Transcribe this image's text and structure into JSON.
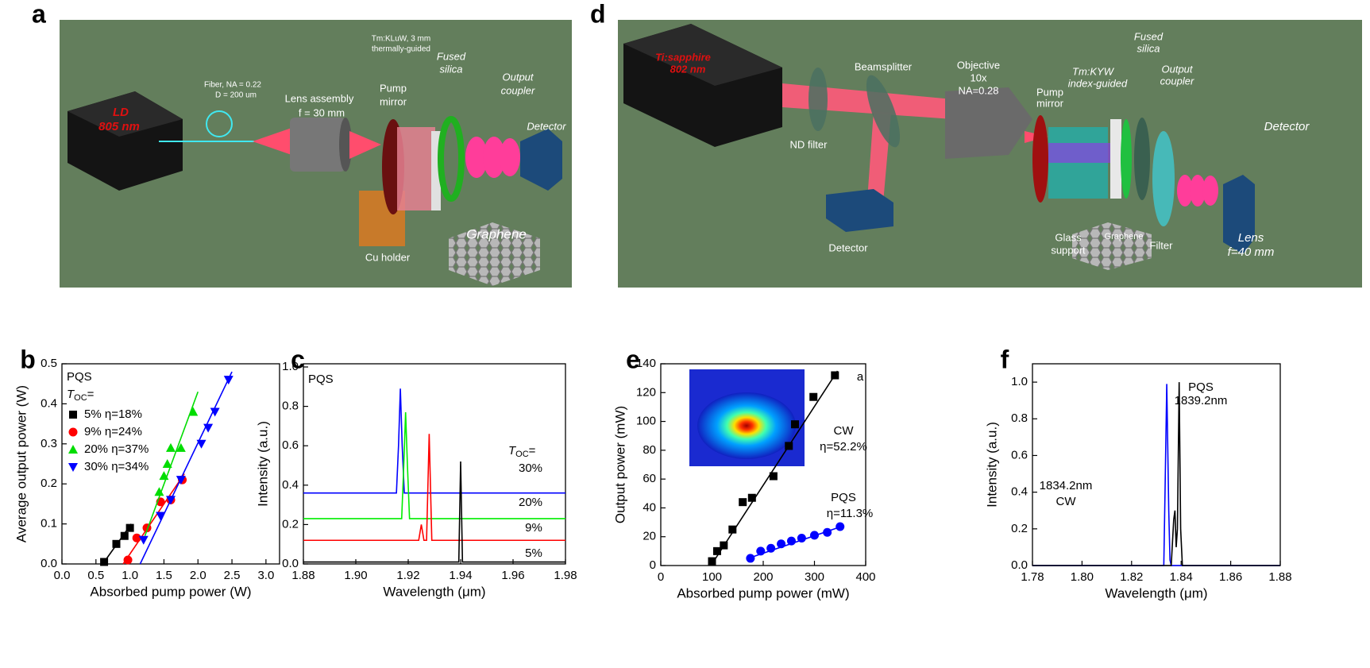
{
  "panel_a": {
    "letter": "a",
    "labels": [
      "Fiber, NA = 0.22",
      "D = 200 um",
      "LD",
      "805 nm",
      "Lens assembly",
      "f = 30 mm",
      "Pump",
      "mirror",
      "Tm:KLuW, 3 mm",
      "thermally-guided",
      "Fused",
      "silica",
      "Output",
      "coupler",
      "Detector",
      "Cu holder",
      "Graphene"
    ]
  },
  "panel_d": {
    "letter": "d",
    "labels": [
      "Ti:sapphire",
      "802 nm",
      "Beamsplitter",
      "ND filter",
      "Detector",
      "Objective",
      "10x",
      "NA=0.28",
      "Pump",
      "mirror",
      "Tm:KYW",
      "index-guided",
      "Fused",
      "silica",
      "Output",
      "coupler",
      "Detector",
      "Glass",
      "support",
      "Graphene",
      "Filter",
      "Lens",
      "f=40 mm"
    ]
  },
  "chart_data": [
    {
      "type": "scatter",
      "panel": "b",
      "xlabel": "Absorbed pump power (W)",
      "ylabel": "Average output power (W)",
      "xlim": [
        0,
        3.2
      ],
      "ylim": [
        0,
        0.5
      ],
      "xticks": [
        {
          "value": 0,
          "label": "0.0"
        },
        0.5,
        {
          "value": 1,
          "label": "1.0"
        },
        1.5,
        {
          "value": 2,
          "label": "2.0"
        },
        2.5,
        {
          "value": 3,
          "label": "3.0"
        }
      ],
      "yticks": [
        {
          "value": 0,
          "label": "0.0"
        },
        0.1,
        0.2,
        0.3,
        0.4,
        0.5
      ],
      "legend": "upper left",
      "legend_title": "PQS",
      "legend_param": {
        "main": "T",
        "sub": "OC",
        "suffix": "="
      },
      "series": [
        {
          "name": "5% η=18%",
          "color": "#000000",
          "marker": "square",
          "x": [
            0.62,
            0.8,
            0.92,
            1.0
          ],
          "values": [
            0.005,
            0.05,
            0.07,
            0.09
          ],
          "fit": {
            "x": [
              0.6,
              1.02
            ],
            "values": [
              0,
              0.1
            ]
          }
        },
        {
          "name": "9% η=24%",
          "color": "#ff0000",
          "marker": "circle",
          "x": [
            0.97,
            1.1,
            1.25,
            1.45,
            1.6,
            1.77
          ],
          "values": [
            0.01,
            0.065,
            0.09,
            0.155,
            0.16,
            0.21
          ],
          "fit": {
            "x": [
              0.9,
              1.8
            ],
            "values": [
              0,
              0.225
            ]
          }
        },
        {
          "name": "20% η=37%",
          "color": "#00dd00",
          "marker": "triangle",
          "x": [
            1.43,
            1.5,
            1.55,
            1.6,
            1.75,
            1.93
          ],
          "values": [
            0.18,
            0.22,
            0.25,
            0.29,
            0.29,
            0.38
          ],
          "fit": {
            "x": [
              1.22,
              2.0
            ],
            "values": [
              0.07,
              0.43
            ]
          }
        },
        {
          "name": "30% η=34%",
          "color": "#0000ff",
          "marker": "triangle-down",
          "x": [
            1.2,
            1.45,
            1.6,
            1.75,
            2.05,
            2.15,
            2.25,
            2.45
          ],
          "values": [
            0.06,
            0.12,
            0.16,
            0.21,
            0.3,
            0.34,
            0.38,
            0.46
          ],
          "fit": {
            "x": [
              1.15,
              2.5
            ],
            "values": [
              0,
              0.48
            ]
          }
        }
      ]
    },
    {
      "type": "line",
      "panel": "c",
      "xlabel": "Wavelength (μm)",
      "ylabel": "Intensity (a.u.)",
      "xlim": [
        1.88,
        1.98
      ],
      "ylim": [
        0,
        1
      ],
      "xticks": [
        1.88,
        {
          "value": 1.9,
          "label": "1.90"
        },
        1.92,
        1.94,
        1.96,
        1.98
      ],
      "yticks": [
        {
          "value": 0,
          "label": "0.0"
        },
        0.2,
        0.4,
        0.6,
        0.8,
        {
          "value": 1,
          "label": "1.0"
        }
      ],
      "legend": "none",
      "title_note": "PQS",
      "legend_param": {
        "main": "T",
        "sub": "OC",
        "suffix": "="
      },
      "series": [
        {
          "name": "30%",
          "color": "#0000ff",
          "x": [
            1.88,
            1.9155,
            1.9163,
            1.917,
            1.9177,
            1.9185,
            1.98
          ],
          "values": [
            0.36,
            0.36,
            0.6,
            0.89,
            0.6,
            0.36,
            0.36
          ]
        },
        {
          "name": "20%",
          "color": "#00ee00",
          "x": [
            1.88,
            1.9175,
            1.9183,
            1.919,
            1.9197,
            1.9205,
            1.98
          ],
          "values": [
            0.23,
            0.23,
            0.5,
            0.77,
            0.5,
            0.23,
            0.23
          ]
        },
        {
          "name": "9%",
          "color": "#ff0000",
          "x": [
            1.88,
            1.924,
            1.925,
            1.926,
            1.927,
            1.928,
            1.929,
            1.98
          ],
          "values": [
            0.12,
            0.12,
            0.2,
            0.12,
            0.12,
            0.66,
            0.12,
            0.12
          ]
        },
        {
          "name": "5%",
          "color": "#000000",
          "x": [
            1.88,
            1.9393,
            1.94,
            1.9407,
            1.98
          ],
          "values": [
            0.01,
            0.01,
            0.52,
            0.01,
            0.01
          ]
        }
      ]
    },
    {
      "type": "scatter",
      "panel": "e",
      "xlabel": "Absorbed pump power (mW)",
      "ylabel": "Output power (mW)",
      "xlim": [
        0,
        400
      ],
      "ylim": [
        0,
        140
      ],
      "xticks": [
        0,
        100,
        200,
        300,
        400
      ],
      "yticks": [
        0,
        20,
        40,
        60,
        80,
        100,
        120,
        140
      ],
      "legend": "none",
      "annotations": [
        "a",
        "η=52.2%",
        "η=11.3%"
      ],
      "series": [
        {
          "name": "CW",
          "color": "#000000",
          "marker": "square",
          "x": [
            100,
            110,
            123,
            140,
            160,
            178,
            220,
            250,
            262,
            298,
            340
          ],
          "values": [
            3,
            10,
            14,
            25,
            44,
            47,
            62,
            83,
            98,
            117,
            132
          ],
          "fit": {
            "x": [
              98,
              345
            ],
            "values": [
              0,
              135
            ]
          }
        },
        {
          "name": "PQS",
          "color": "#0000ff",
          "marker": "circle",
          "x": [
            175,
            195,
            215,
            235,
            255,
            275,
            300,
            325,
            350
          ],
          "values": [
            5,
            10,
            12,
            15,
            17,
            19,
            21,
            23,
            27
          ],
          "fit": {
            "x": [
              175,
              352
            ],
            "values": [
              5.5,
              27
            ]
          }
        }
      ]
    },
    {
      "type": "line",
      "panel": "f",
      "xlabel": "Wavelength (μm)",
      "ylabel": "Intensity (a.u.)",
      "xlim": [
        1.78,
        1.88
      ],
      "ylim": [
        0,
        1.1
      ],
      "xticks": [
        1.78,
        {
          "value": 1.8,
          "label": "1.80"
        },
        1.82,
        1.84,
        1.86,
        1.88
      ],
      "yticks": [
        {
          "value": 0,
          "label": "0.0"
        },
        0.2,
        0.4,
        0.6,
        0.8,
        {
          "value": 1,
          "label": "1.0"
        }
      ],
      "legend": "none",
      "annotations": [
        "1839.2nm",
        "1834.2nm"
      ],
      "series": [
        {
          "name": "PQS",
          "color": "#0000ff",
          "x": [
            1.78,
            1.833,
            1.8335,
            1.8342,
            1.835,
            1.8355,
            1.836,
            1.88
          ],
          "values": [
            0,
            0,
            0.4,
            0.99,
            0.3,
            0.03,
            0,
            0
          ]
        },
        {
          "name": "CW",
          "color": "#000000",
          "x": [
            1.78,
            1.836,
            1.837,
            1.8375,
            1.838,
            1.8385,
            1.8392,
            1.8398,
            1.8405,
            1.88
          ],
          "values": [
            0,
            0,
            0.25,
            0.3,
            0.1,
            0.2,
            1,
            0.2,
            0,
            0
          ]
        }
      ]
    }
  ]
}
